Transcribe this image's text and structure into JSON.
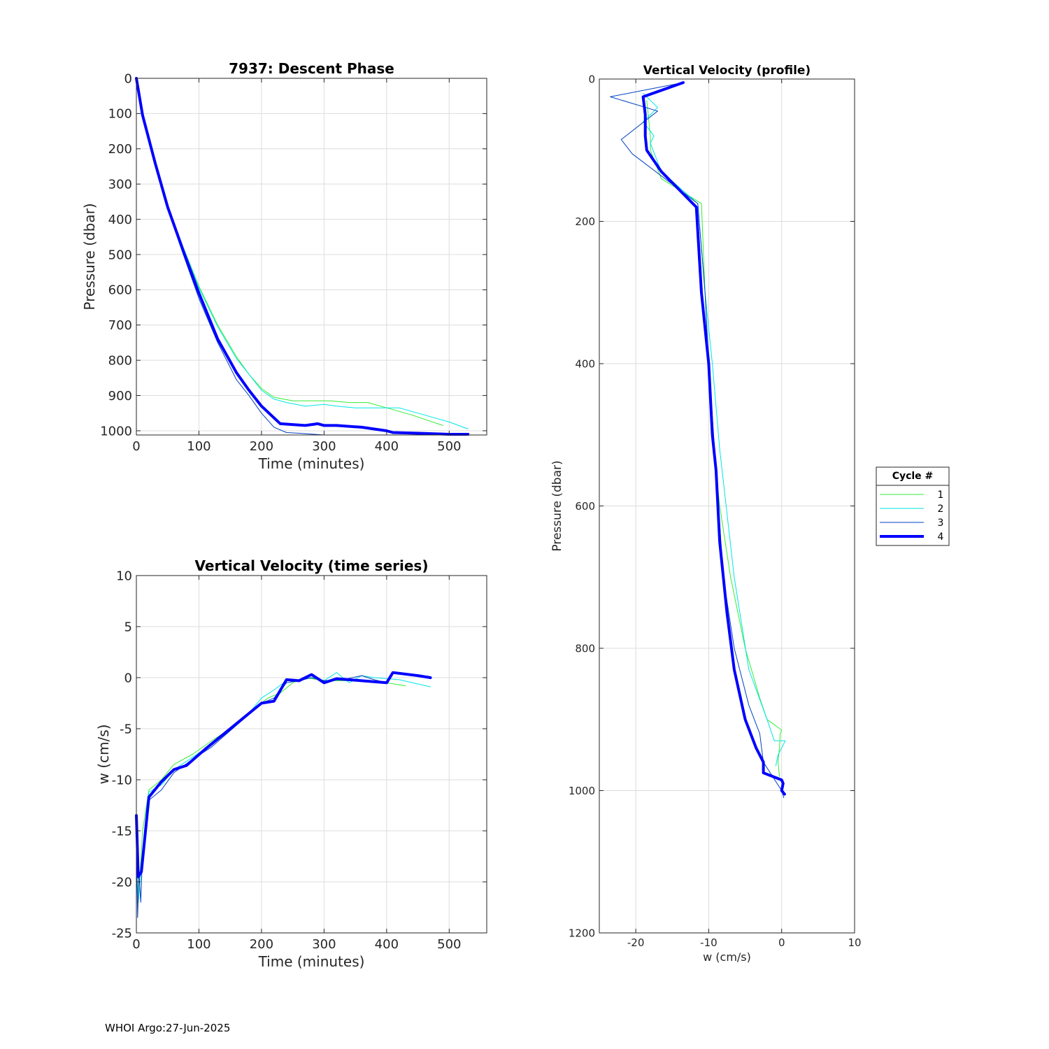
{
  "footer": "WHOI Argo:27-Jun-2025",
  "legend": {
    "title": "Cycle #",
    "entries": [
      {
        "label": "1",
        "color": "#33ee33",
        "width": 1
      },
      {
        "label": "2",
        "color": "#00e5e5",
        "width": 1
      },
      {
        "label": "3",
        "color": "#0040c0",
        "width": 1
      },
      {
        "label": "4",
        "color": "#0000ff",
        "width": 4
      }
    ]
  },
  "chart_data": [
    {
      "type": "line",
      "title": "7937: Descent Phase",
      "xlabel": "Time (minutes)",
      "ylabel": "Pressure (dbar)",
      "xlim": [
        0,
        560
      ],
      "ylim": [
        0,
        1012
      ],
      "y_reversed": true,
      "xticks": [
        0,
        100,
        200,
        300,
        400,
        500
      ],
      "yticks": [
        0,
        100,
        200,
        300,
        400,
        500,
        600,
        700,
        800,
        900,
        1000
      ],
      "grid": true,
      "series": [
        {
          "name": "1",
          "color": "#33ee33",
          "width": 1,
          "x": [
            0,
            10,
            30,
            50,
            75,
            100,
            130,
            160,
            180,
            200,
            220,
            250,
            280,
            310,
            340,
            370,
            400,
            440,
            490
          ],
          "y": [
            0,
            105,
            240,
            360,
            480,
            590,
            700,
            790,
            840,
            880,
            905,
            915,
            915,
            915,
            920,
            920,
            935,
            955,
            985
          ]
        },
        {
          "name": "2",
          "color": "#00e5e5",
          "width": 1,
          "x": [
            0,
            10,
            30,
            50,
            75,
            100,
            130,
            160,
            180,
            200,
            220,
            240,
            270,
            300,
            320,
            350,
            380,
            420,
            460,
            500,
            530
          ],
          "y": [
            0,
            105,
            240,
            360,
            480,
            595,
            705,
            795,
            840,
            885,
            910,
            920,
            930,
            925,
            930,
            935,
            935,
            935,
            955,
            975,
            995
          ]
        },
        {
          "name": "3",
          "color": "#0040c0",
          "width": 1,
          "x": [
            0,
            10,
            30,
            50,
            75,
            100,
            130,
            160,
            180,
            200,
            220,
            240,
            260,
            300,
            350,
            400,
            450,
            500,
            530
          ],
          "y": [
            0,
            105,
            245,
            370,
            500,
            625,
            750,
            855,
            900,
            950,
            990,
            1005,
            1007,
            1012,
            1012,
            1012,
            1012,
            1012,
            1012
          ]
        },
        {
          "name": "4",
          "color": "#0000ff",
          "width": 4,
          "x": [
            0,
            10,
            30,
            50,
            75,
            100,
            130,
            160,
            180,
            200,
            230,
            270,
            290,
            300,
            320,
            360,
            400,
            410,
            450,
            500,
            530
          ],
          "y": [
            0,
            105,
            240,
            365,
            490,
            610,
            740,
            835,
            885,
            930,
            980,
            985,
            980,
            985,
            985,
            990,
            1000,
            1005,
            1007,
            1010,
            1010
          ]
        }
      ]
    },
    {
      "type": "line",
      "title": "Vertical Velocity (time series)",
      "xlabel": "Time (minutes)",
      "ylabel": "w (cm/s)",
      "xlim": [
        0,
        560
      ],
      "ylim": [
        -25,
        10
      ],
      "xticks": [
        0,
        100,
        200,
        300,
        400,
        500
      ],
      "yticks": [
        10,
        5,
        0,
        -5,
        -10,
        -15,
        -20,
        -25
      ],
      "grid": true,
      "series": [
        {
          "name": "1",
          "color": "#33ee33",
          "width": 1,
          "x": [
            0,
            3,
            6,
            10,
            20,
            40,
            60,
            90,
            120,
            150,
            180,
            210,
            230,
            250,
            270,
            290,
            310,
            340,
            370,
            400,
            430
          ],
          "y": [
            -20,
            -21,
            -19,
            -15,
            -11,
            -10,
            -8.5,
            -7.5,
            -6.2,
            -5,
            -3.5,
            -2,
            -1.5,
            -0.5,
            0,
            -0.2,
            -0.3,
            -0.3,
            -0.4,
            -0.5,
            -0.8
          ]
        },
        {
          "name": "2",
          "color": "#00e5e5",
          "width": 1,
          "x": [
            0,
            3,
            6,
            10,
            20,
            40,
            60,
            90,
            120,
            150,
            180,
            200,
            220,
            240,
            260,
            280,
            300,
            320,
            340,
            360,
            380,
            420,
            470
          ],
          "y": [
            -18,
            -22,
            -20,
            -17,
            -11.2,
            -10.5,
            -9,
            -7.8,
            -6.5,
            -5,
            -3.5,
            -2,
            -1.2,
            -0.3,
            -0.2,
            0,
            -0.3,
            0.5,
            -0.5,
            0.2,
            0,
            -0.2,
            -0.9
          ]
        },
        {
          "name": "3",
          "color": "#0040c0",
          "width": 1,
          "x": [
            0,
            2,
            4,
            7,
            10,
            20,
            40,
            60,
            90,
            120,
            150,
            180,
            200,
            220,
            240,
            260,
            280,
            300,
            330,
            360,
            380,
            400
          ],
          "y": [
            -16,
            -23.5,
            -19,
            -22,
            -17,
            -12,
            -11,
            -9.3,
            -8,
            -6.8,
            -5.2,
            -3.6,
            -2.5,
            -2,
            -0.5,
            -0.3,
            0,
            -0.3,
            -0.2,
            0.2,
            -0.2,
            -0.5
          ]
        },
        {
          "name": "4",
          "color": "#0000ff",
          "width": 4,
          "x": [
            0,
            3,
            8,
            20,
            40,
            60,
            80,
            110,
            140,
            170,
            200,
            220,
            240,
            260,
            280,
            300,
            320,
            360,
            400,
            410,
            450,
            470
          ],
          "y": [
            -13.5,
            -19.5,
            -19,
            -11.7,
            -10.2,
            -9,
            -8.6,
            -7,
            -5.5,
            -4,
            -2.5,
            -2.3,
            -0.2,
            -0.3,
            0.3,
            -0.5,
            -0.1,
            -0.3,
            -0.5,
            0.5,
            0.2,
            0
          ]
        }
      ]
    },
    {
      "type": "line",
      "title": "Vertical Velocity (profile)",
      "xlabel": "w (cm/s)",
      "ylabel": "Pressure (dbar)",
      "xlim": [
        -25,
        10
      ],
      "ylim": [
        0,
        1200
      ],
      "y_reversed": true,
      "xticks": [
        -20,
        -10,
        0,
        10
      ],
      "yticks": [
        0,
        200,
        400,
        600,
        800,
        1000,
        1200
      ],
      "grid": true,
      "series": [
        {
          "name": "1",
          "color": "#33ee33",
          "width": 1,
          "x": [
            -18.5,
            -18,
            -18,
            -16.5,
            -11,
            -10.5,
            -10,
            -9.5,
            -8.5,
            -7,
            -5,
            -3,
            -2,
            0,
            -0.2,
            -0.3,
            -0.5,
            -0.3
          ],
          "y": [
            30,
            80,
            100,
            140,
            175,
            300,
            400,
            500,
            600,
            700,
            800,
            870,
            900,
            915,
            920,
            940,
            960,
            980
          ]
        },
        {
          "name": "2",
          "color": "#00e5e5",
          "width": 1,
          "x": [
            -19,
            -17,
            -19,
            -17.5,
            -18,
            -16.5,
            -11.5,
            -10.5,
            -9.5,
            -8.5,
            -6.5,
            -4.5,
            -2,
            -1,
            0.5,
            0,
            -0.5,
            -0.8
          ],
          "y": [
            20,
            40,
            60,
            80,
            90,
            130,
            175,
            300,
            400,
            520,
            700,
            830,
            900,
            930,
            930,
            940,
            950,
            965
          ]
        },
        {
          "name": "3",
          "color": "#0040c0",
          "width": 1,
          "x": [
            -13.5,
            -23.5,
            -17,
            -22,
            -20.5,
            -11.5,
            -10.5,
            -10,
            -9,
            -8,
            -6.5,
            -4.5,
            -3,
            -2.5,
            0,
            0.3
          ],
          "y": [
            5,
            25,
            45,
            85,
            105,
            175,
            300,
            400,
            550,
            700,
            800,
            880,
            920,
            960,
            1000,
            1010
          ]
        },
        {
          "name": "4",
          "color": "#0000ff",
          "width": 4,
          "x": [
            -13.5,
            -19,
            -18.7,
            -18.7,
            -18.5,
            -16.5,
            -11.7,
            -11,
            -10,
            -9.5,
            -9,
            -8.5,
            -7.5,
            -6.5,
            -5,
            -3.5,
            -2.5,
            -2.5,
            0,
            0.2,
            0,
            0.4
          ],
          "y": [
            5,
            25,
            50,
            80,
            100,
            130,
            180,
            300,
            400,
            500,
            550,
            650,
            750,
            830,
            900,
            940,
            960,
            975,
            985,
            990,
            1000,
            1005
          ]
        }
      ]
    }
  ]
}
